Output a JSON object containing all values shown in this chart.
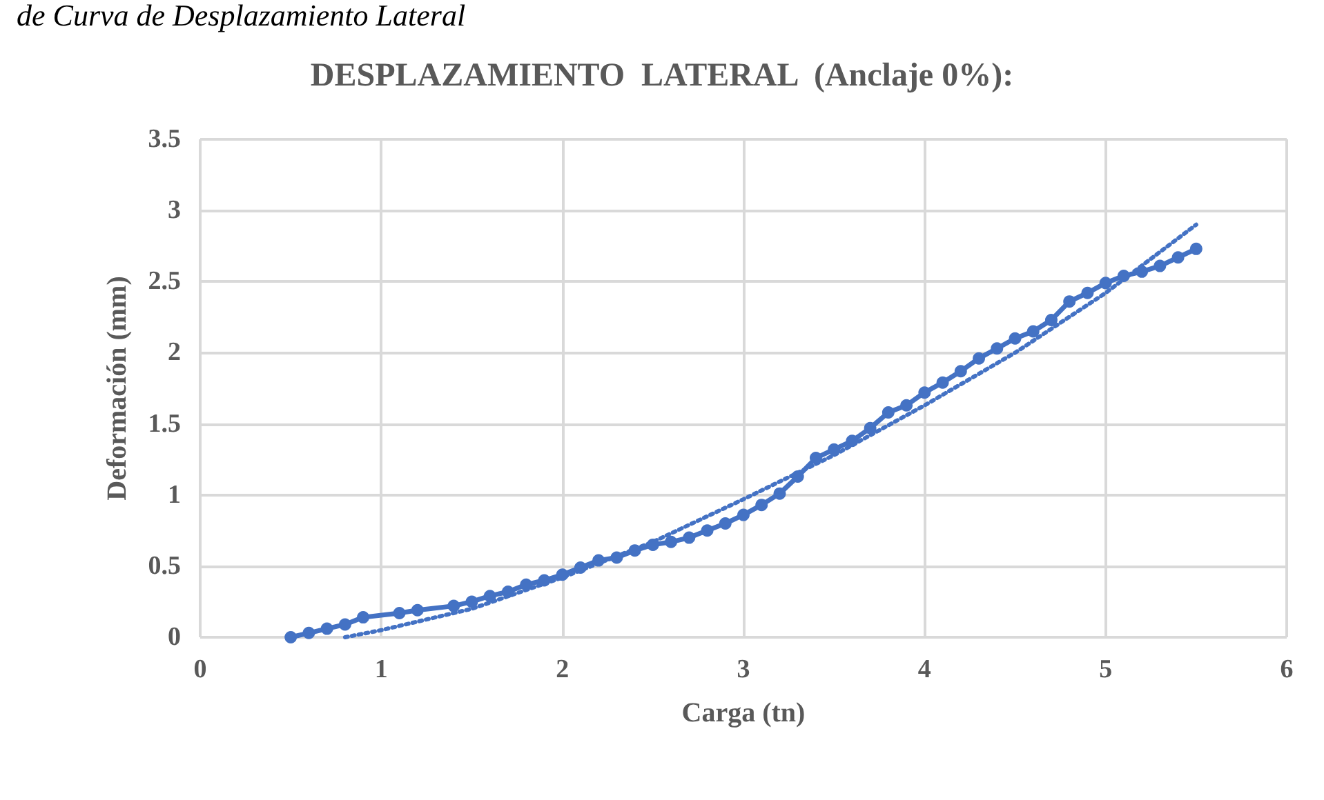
{
  "chart_data": {
    "type": "line",
    "title": "DESPLAZAMIENTO  LATERAL  (Anclaje 0%):",
    "xlabel": "Carga (tn)",
    "ylabel": "Deformación (mm)",
    "annotations": [
      "de Curva de Desplazamiento Lateral"
    ],
    "xlim": [
      0,
      6
    ],
    "xticks": [
      0,
      1,
      2,
      3,
      4,
      5,
      6
    ],
    "ylim": [
      0,
      3.5
    ],
    "yticks": [
      0,
      0.5,
      1,
      1.5,
      2,
      2.5,
      3,
      3.5
    ],
    "grid": true,
    "marker": "circle",
    "line_style": "solid",
    "series": [
      {
        "color": "#4472c4",
        "x": [
          0.5,
          0.6,
          0.7,
          0.8,
          0.9,
          1.1,
          1.2,
          1.4,
          1.5,
          1.6,
          1.7,
          1.8,
          1.9,
          2.0,
          2.1,
          2.2,
          2.3,
          2.4,
          2.5,
          2.6,
          2.7,
          2.8,
          2.9,
          3.0,
          3.1,
          3.2,
          3.3,
          3.4,
          3.5,
          3.6,
          3.7,
          3.8,
          3.9,
          4.0,
          4.1,
          4.2,
          4.3,
          4.4,
          4.5,
          4.6,
          4.7,
          4.8,
          4.9,
          5.0,
          5.1,
          5.2,
          5.3,
          5.4,
          5.5
        ],
        "values": [
          0.0,
          0.03,
          0.06,
          0.09,
          0.14,
          0.17,
          0.19,
          0.22,
          0.25,
          0.29,
          0.32,
          0.37,
          0.4,
          0.44,
          0.49,
          0.54,
          0.56,
          0.61,
          0.65,
          0.67,
          0.7,
          0.75,
          0.8,
          0.86,
          0.93,
          1.01,
          1.13,
          1.26,
          1.32,
          1.38,
          1.47,
          1.58,
          1.63,
          1.72,
          1.79,
          1.87,
          1.96,
          2.03,
          2.1,
          2.15,
          2.23,
          2.36,
          2.42,
          2.49,
          2.54,
          2.57,
          2.61,
          2.67,
          2.73
        ]
      },
      {
        "color": "#4472c4",
        "marker": "none",
        "line_style": "dotted",
        "x": [
          0.8,
          1.0,
          1.5,
          2.0,
          2.5,
          3.0,
          3.5,
          4.0,
          4.5,
          5.0,
          5.5
        ],
        "values": [
          0.0,
          0.05,
          0.2,
          0.42,
          0.67,
          0.97,
          1.28,
          1.63,
          2.0,
          2.42,
          2.9
        ]
      }
    ]
  }
}
